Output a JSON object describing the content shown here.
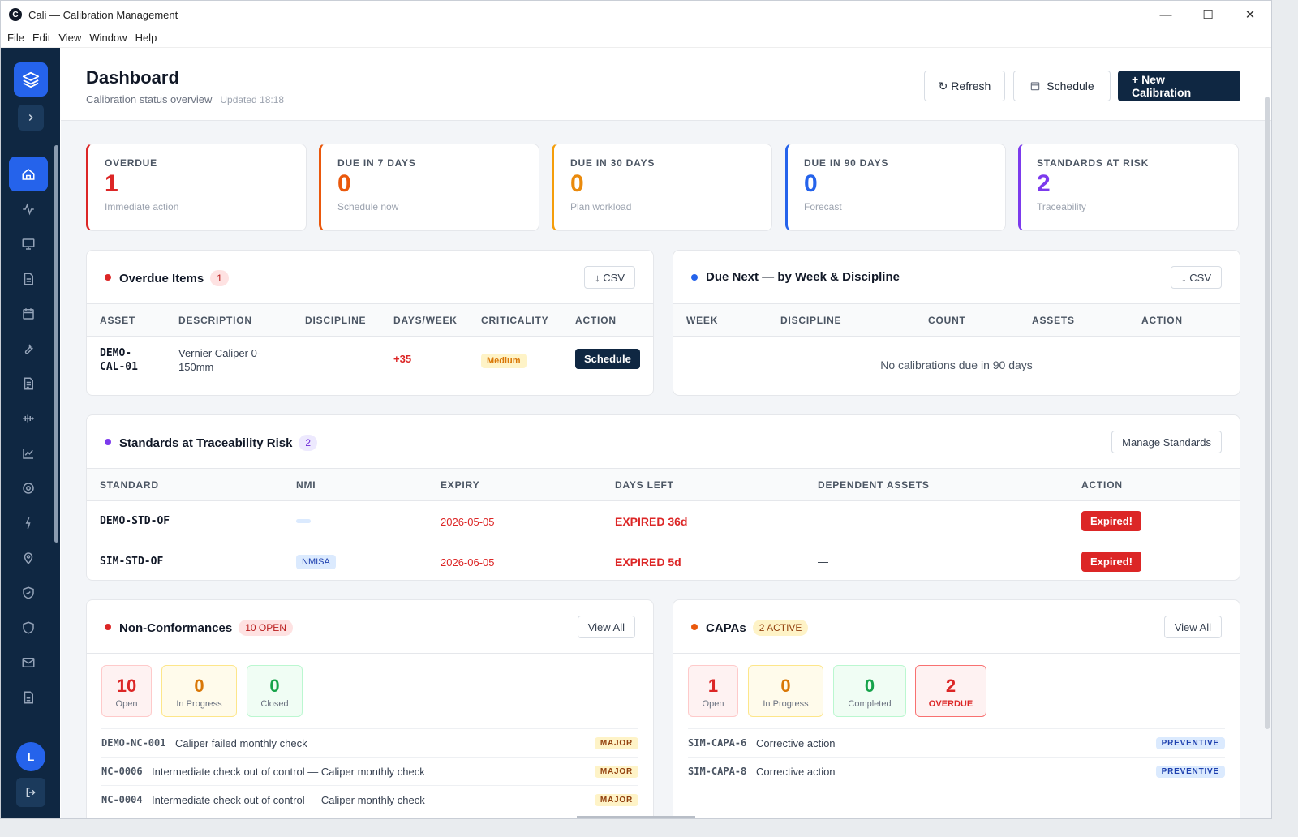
{
  "window": {
    "title": "Cali — Calibration Management",
    "app_letter": "C"
  },
  "menu": [
    "File",
    "Edit",
    "View",
    "Window",
    "Help"
  ],
  "sidebar": {
    "avatar_initial": "L"
  },
  "header": {
    "title": "Dashboard",
    "subtitle": "Calibration status overview",
    "updated": "Updated 18:18",
    "refresh_label": "↻ Refresh",
    "schedule_label": "Schedule",
    "new_label": "+ New Calibration"
  },
  "stats": [
    {
      "label": "OVERDUE",
      "value": "1",
      "sub": "Immediate action",
      "color": "#dc2626"
    },
    {
      "label": "DUE IN 7 DAYS",
      "value": "0",
      "sub": "Schedule now",
      "color": "#ea580c"
    },
    {
      "label": "DUE IN 30 DAYS",
      "value": "0",
      "sub": "Plan workload",
      "color": "#ea8a0c"
    },
    {
      "label": "DUE IN 90 DAYS",
      "value": "0",
      "sub": "Forecast",
      "color": "#2563eb"
    },
    {
      "label": "STANDARDS AT RISK",
      "value": "2",
      "sub": "Traceability",
      "color": "#7c3aed"
    }
  ],
  "overdue": {
    "title": "Overdue Items",
    "count": "1",
    "csv_label": "↓ CSV",
    "columns": [
      "ASSET",
      "DESCRIPTION",
      "DISCIPLINE",
      "DAYS/WEEK",
      "CRITICALITY",
      "ACTION"
    ],
    "row": {
      "asset_line1": "DEMO-",
      "asset_line2": "CAL-01",
      "desc_line1": "Vernier Caliper 0-",
      "desc_line2": "150mm",
      "days": "+35",
      "criticality": "Medium",
      "action": "Schedule"
    }
  },
  "due_next": {
    "title": "Due Next — by Week & Discipline",
    "csv_label": "↓ CSV",
    "columns": [
      "WEEK",
      "DISCIPLINE",
      "COUNT",
      "ASSETS",
      "ACTION"
    ],
    "empty": "No calibrations due in 90 days"
  },
  "standards": {
    "title": "Standards at Traceability Risk",
    "count": "2",
    "manage_label": "Manage Standards",
    "columns": [
      "STANDARD",
      "NMI",
      "EXPIRY",
      "DAYS LEFT",
      "DEPENDENT ASSETS",
      "ACTION"
    ],
    "rows": [
      {
        "standard": "DEMO-STD-OF",
        "nmi": "",
        "expiry": "2026-05-05",
        "days_left": "EXPIRED 36d",
        "dependent": "—",
        "action": "Expired!"
      },
      {
        "standard": "SIM-STD-OF",
        "nmi": "NMISA",
        "expiry": "2026-06-05",
        "days_left": "EXPIRED 5d",
        "dependent": "—",
        "action": "Expired!"
      }
    ]
  },
  "ncr": {
    "title": "Non-Conformances",
    "badge": "10 OPEN",
    "view_all": "View All",
    "counts": [
      {
        "value": "10",
        "label": "Open"
      },
      {
        "value": "0",
        "label": "In Progress"
      },
      {
        "value": "0",
        "label": "Closed"
      }
    ],
    "items": [
      {
        "id": "DEMO-NC-001",
        "text": "Caliper failed monthly check",
        "tag": "MAJOR"
      },
      {
        "id": "NC-0006",
        "text": "Intermediate check out of control — Caliper monthly check",
        "tag": "MAJOR"
      },
      {
        "id": "NC-0004",
        "text": "Intermediate check out of control — Caliper monthly check",
        "tag": "MAJOR"
      }
    ]
  },
  "capa": {
    "title": "CAPAs",
    "badge": "2 ACTIVE",
    "view_all": "View All",
    "counts": [
      {
        "value": "1",
        "label": "Open"
      },
      {
        "value": "0",
        "label": "In Progress"
      },
      {
        "value": "0",
        "label": "Completed"
      },
      {
        "value": "2",
        "label": "OVERDUE"
      }
    ],
    "items": [
      {
        "id": "SIM-CAPA-6",
        "text": "Corrective action",
        "tag": "PREVENTIVE"
      },
      {
        "id": "SIM-CAPA-8",
        "text": "Corrective action",
        "tag": "PREVENTIVE"
      }
    ]
  }
}
